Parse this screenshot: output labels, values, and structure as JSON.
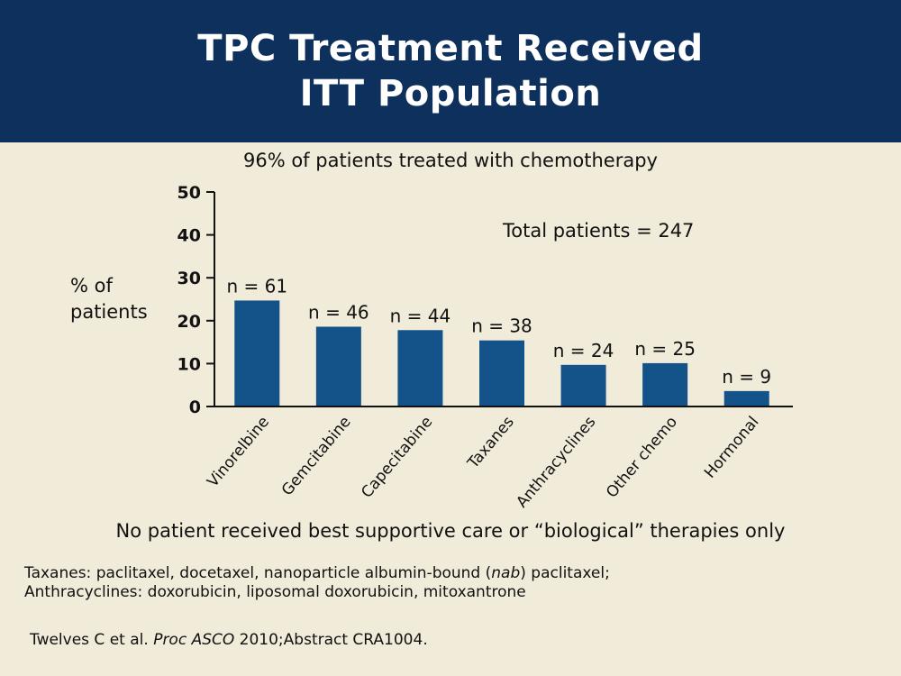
{
  "slide": {
    "title_line1": "TPC Treatment Received",
    "title_line2": "ITT Population",
    "subtitle": "96% of patients treated with chemotherapy",
    "note": "No patient received best supportive care or “biological” therapies only",
    "footnote": {
      "line1_pre": "Taxanes: paclitaxel, docetaxel, nanoparticle albumin-bound (",
      "line1_em": "nab",
      "line1_post": ") paclitaxel;",
      "line2": "Anthracyclines: doxorubicin, liposomal doxorubicin, mitoxantrone"
    },
    "citation": {
      "pre": "Twelves C et al. ",
      "em": "Proc ASCO",
      "post": " 2010;Abstract CRA1004."
    }
  },
  "colors": {
    "header_bg": "#0e305c",
    "background": "#f1ebd9",
    "bar": "#13538a"
  },
  "chart_data": {
    "type": "bar",
    "categories": [
      "Vinorelbine",
      "Gemcitabine",
      "Capecitabine",
      "Taxanes",
      "Anthracyclines",
      "Other chemo",
      "Hormonal"
    ],
    "values": [
      24.7,
      18.6,
      17.8,
      15.4,
      9.7,
      10.1,
      3.6
    ],
    "data_labels": [
      "n = 61",
      "n = 46",
      "n = 44",
      "n = 38",
      "n = 24",
      "n = 25",
      "n = 9"
    ],
    "ylabel_line1": "% of",
    "ylabel_line2": "patients",
    "ylim": [
      0,
      50
    ],
    "yticks": [
      "0",
      "10",
      "20",
      "30",
      "40",
      "50"
    ],
    "annotation": "Total patients = 247",
    "grid": false
  }
}
